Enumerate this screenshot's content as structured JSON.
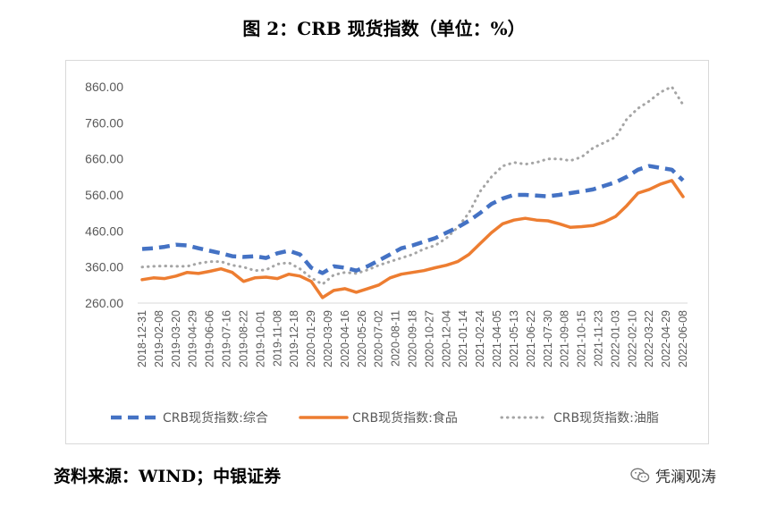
{
  "title": "图 2：CRB 现货指数（单位：%）",
  "source": "资料来源：WIND；中银证券",
  "watermark": "凭澜观涛",
  "colors": {
    "composite": "#4472C4",
    "food": "#ED7D31",
    "fats_oils": "#A5A5A5",
    "axis_text": "#595959",
    "grid": "#d9d9d9"
  },
  "chart_data": {
    "type": "line",
    "title": "图 2：CRB 现货指数（单位：%）",
    "xlabel": "",
    "ylabel": "",
    "ylim": [
      260,
      860
    ],
    "yticks": [
      "260.00",
      "360.00",
      "460.00",
      "560.00",
      "660.00",
      "760.00",
      "860.00"
    ],
    "grid": false,
    "legend_position": "bottom",
    "x_date_labels": [
      "2018-12-31",
      "2019-02-08",
      "2019-03-20",
      "2019-04-29",
      "2019-06-06",
      "2019-07-16",
      "2019-08-22",
      "2019-10-01",
      "2019-11-08",
      "2019-12-18",
      "2020-01-29",
      "2020-03-09",
      "2020-04-16",
      "2020-05-26",
      "2020-07-02",
      "2020-08-11",
      "2020-09-18",
      "2020-10-27",
      "2020-12-04",
      "2021-01-14",
      "2021-02-24",
      "2021-04-05",
      "2021-05-13",
      "2021-06-22",
      "2021-07-30",
      "2021-09-08",
      "2021-10-15",
      "2021-11-23",
      "2022-01-03",
      "2022-02-10",
      "2022-03-22",
      "2022-04-29",
      "2022-06-08"
    ],
    "series": [
      {
        "name": "CRB现货指数:综合",
        "style": "dashed",
        "color": "#4472C4",
        "values": [
          410,
          412,
          416,
          422,
          420,
          412,
          405,
          398,
          390,
          388,
          390,
          385,
          398,
          405,
          395,
          358,
          343,
          362,
          358,
          350,
          362,
          378,
          395,
          412,
          420,
          430,
          440,
          455,
          470,
          488,
          510,
          535,
          550,
          560,
          560,
          558,
          556,
          560,
          565,
          570,
          575,
          585,
          595,
          610,
          630,
          640,
          635,
          630,
          600
        ]
      },
      {
        "name": "CRB现货指数:食品",
        "style": "solid",
        "color": "#ED7D31",
        "values": [
          325,
          330,
          328,
          335,
          345,
          342,
          348,
          355,
          345,
          320,
          330,
          332,
          328,
          340,
          335,
          320,
          275,
          295,
          300,
          290,
          300,
          310,
          330,
          340,
          345,
          350,
          358,
          365,
          375,
          395,
          425,
          455,
          480,
          490,
          495,
          490,
          488,
          480,
          470,
          472,
          475,
          485,
          500,
          530,
          565,
          575,
          590,
          600,
          555
        ]
      },
      {
        "name": "CRB现货指数:油脂",
        "style": "dotted",
        "color": "#A5A5A5",
        "values": [
          360,
          362,
          363,
          362,
          362,
          370,
          375,
          375,
          365,
          360,
          350,
          352,
          368,
          372,
          355,
          330,
          312,
          338,
          345,
          342,
          352,
          365,
          375,
          385,
          395,
          410,
          420,
          440,
          470,
          510,
          570,
          610,
          640,
          650,
          645,
          650,
          660,
          660,
          655,
          665,
          690,
          705,
          720,
          770,
          800,
          820,
          845,
          860,
          810
        ]
      }
    ]
  },
  "legend": [
    {
      "label": "CRB现货指数:综合"
    },
    {
      "label": "CRB现货指数:食品"
    },
    {
      "label": "CRB现货指数:油脂"
    }
  ]
}
